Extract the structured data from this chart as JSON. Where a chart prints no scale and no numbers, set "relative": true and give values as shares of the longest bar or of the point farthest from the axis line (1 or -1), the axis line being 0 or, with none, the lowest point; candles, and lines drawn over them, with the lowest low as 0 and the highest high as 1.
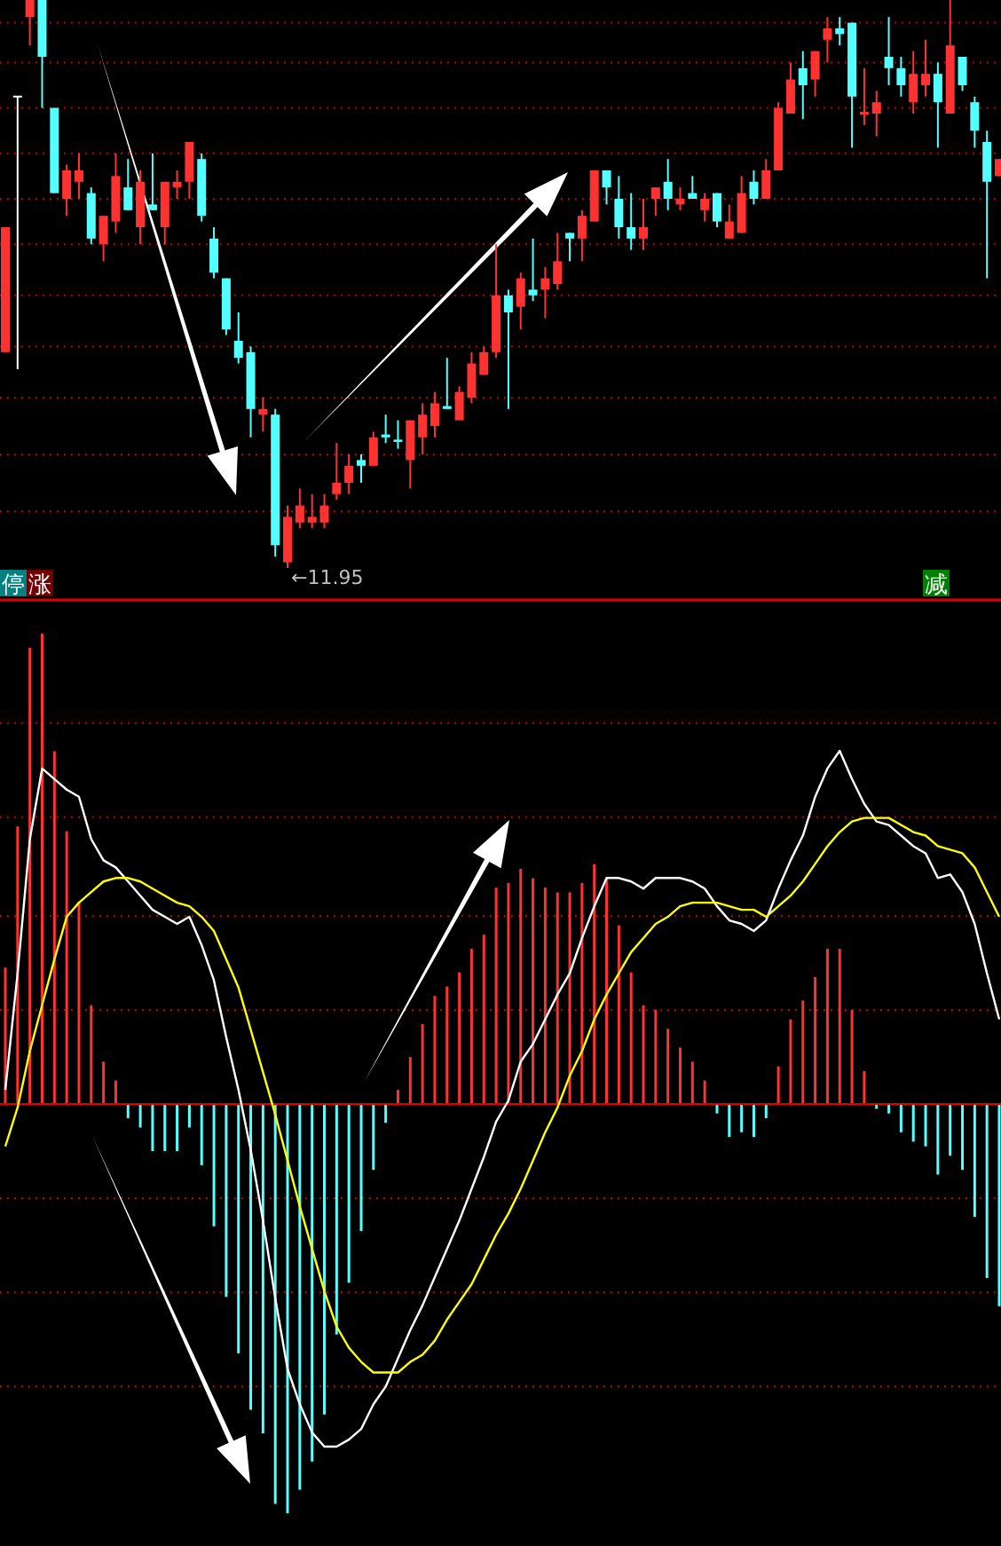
{
  "chart_data": [
    {
      "type": "candlestick",
      "relative": true,
      "ref_lines": [
        {
          "axis": "y",
          "value": 0.96,
          "color": "#c00000",
          "line_style": "dotted"
        },
        {
          "axis": "y",
          "value": 0.89,
          "color": "#c00000",
          "line_style": "dotted"
        },
        {
          "axis": "y",
          "value": 0.81,
          "color": "#c00000",
          "line_style": "dotted"
        },
        {
          "axis": "y",
          "value": 0.73,
          "color": "#c00000",
          "line_style": "dotted"
        },
        {
          "axis": "y",
          "value": 0.65,
          "color": "#c00000",
          "line_style": "dotted"
        },
        {
          "axis": "y",
          "value": 0.57,
          "color": "#c00000",
          "line_style": "dotted"
        },
        {
          "axis": "y",
          "value": 0.48,
          "color": "#c00000",
          "line_style": "dotted"
        },
        {
          "axis": "y",
          "value": 0.39,
          "color": "#c00000",
          "line_style": "dotted"
        },
        {
          "axis": "y",
          "value": 0.3,
          "color": "#c00000",
          "line_style": "dotted"
        },
        {
          "axis": "y",
          "value": 0.2,
          "color": "#c00000",
          "line_style": "dotted"
        },
        {
          "axis": "y",
          "value": 0.1,
          "color": "#c00000",
          "line_style": "dotted"
        }
      ],
      "categories": [
        null,
        null,
        null,
        null,
        null,
        null,
        null,
        null,
        null,
        null,
        null,
        null,
        null,
        null,
        null,
        null,
        null,
        null,
        null,
        null,
        null,
        null,
        null,
        null,
        null,
        null,
        null,
        null,
        null,
        null,
        null,
        null,
        null,
        null,
        null,
        null,
        null,
        null,
        null,
        null,
        null,
        null,
        null,
        null,
        null,
        null,
        null,
        null,
        null,
        null,
        null,
        null,
        null,
        null,
        null,
        null,
        null,
        null,
        null,
        null,
        null,
        null,
        null,
        null,
        null,
        null,
        null,
        null,
        null,
        null,
        null,
        null,
        null,
        null,
        null,
        null,
        null,
        null,
        null,
        null,
        null,
        null
      ],
      "ohlc": [
        [
          0.38,
          0.6,
          0.38,
          0.6
        ],
        [
          0.83,
          0.83,
          0.35,
          0.83
        ],
        [
          0.97,
          1.0,
          0.92,
          1.0
        ],
        [
          1.0,
          1.0,
          0.81,
          0.9
        ],
        [
          0.81,
          0.81,
          0.66,
          0.66
        ],
        [
          0.65,
          0.71,
          0.62,
          0.7
        ],
        [
          0.68,
          0.73,
          0.65,
          0.7
        ],
        [
          0.66,
          0.67,
          0.57,
          0.58
        ],
        [
          0.57,
          0.62,
          0.54,
          0.62
        ],
        [
          0.61,
          0.73,
          0.59,
          0.69
        ],
        [
          0.67,
          0.72,
          0.63,
          0.63
        ],
        [
          0.6,
          0.7,
          0.57,
          0.68
        ],
        [
          0.64,
          0.73,
          0.63,
          0.63
        ],
        [
          0.6,
          0.68,
          0.57,
          0.68
        ],
        [
          0.67,
          0.7,
          0.65,
          0.68
        ],
        [
          0.68,
          0.75,
          0.65,
          0.75
        ],
        [
          0.72,
          0.73,
          0.61,
          0.62
        ],
        [
          0.58,
          0.6,
          0.51,
          0.52
        ],
        [
          0.51,
          0.51,
          0.41,
          0.42
        ],
        [
          0.4,
          0.45,
          0.36,
          0.37
        ],
        [
          0.38,
          0.39,
          0.23,
          0.28
        ],
        [
          0.27,
          0.3,
          0.24,
          0.28
        ],
        [
          0.27,
          0.28,
          0.02,
          0.04
        ],
        [
          0.01,
          0.11,
          0.0,
          0.09
        ],
        [
          0.08,
          0.14,
          0.07,
          0.11
        ],
        [
          0.08,
          0.13,
          0.07,
          0.09
        ],
        [
          0.08,
          0.13,
          0.07,
          0.11
        ],
        [
          0.13,
          0.22,
          0.12,
          0.15
        ],
        [
          0.15,
          0.2,
          0.13,
          0.18
        ],
        [
          0.19,
          0.2,
          0.15,
          0.18
        ],
        [
          0.18,
          0.24,
          0.18,
          0.23
        ],
        [
          0.235,
          0.27,
          0.22,
          0.23
        ],
        [
          0.226,
          0.26,
          0.21,
          0.222
        ],
        [
          0.19,
          0.26,
          0.14,
          0.26
        ],
        [
          0.23,
          0.29,
          0.2,
          0.27
        ],
        [
          0.25,
          0.31,
          0.23,
          0.29
        ],
        [
          0.285,
          0.37,
          0.28,
          0.28
        ],
        [
          0.26,
          0.32,
          0.26,
          0.31
        ],
        [
          0.3,
          0.38,
          0.29,
          0.36
        ],
        [
          0.34,
          0.39,
          0.34,
          0.38
        ],
        [
          0.38,
          0.57,
          0.37,
          0.48
        ],
        [
          0.48,
          0.49,
          0.28,
          0.45
        ],
        [
          0.46,
          0.52,
          0.42,
          0.51
        ],
        [
          0.49,
          0.58,
          0.47,
          0.48
        ],
        [
          0.49,
          0.53,
          0.44,
          0.51
        ],
        [
          0.5,
          0.59,
          0.49,
          0.54
        ],
        [
          0.59,
          0.59,
          0.54,
          0.58
        ],
        [
          0.58,
          0.63,
          0.54,
          0.62
        ],
        [
          0.61,
          0.7,
          0.61,
          0.7
        ],
        [
          0.7,
          0.7,
          0.64,
          0.67
        ],
        [
          0.65,
          0.69,
          0.58,
          0.6
        ],
        [
          0.6,
          0.66,
          0.56,
          0.58
        ],
        [
          0.58,
          0.65,
          0.56,
          0.6
        ],
        [
          0.65,
          0.67,
          0.62,
          0.67
        ],
        [
          0.68,
          0.72,
          0.63,
          0.65
        ],
        [
          0.64,
          0.67,
          0.63,
          0.65
        ],
        [
          0.66,
          0.69,
          0.65,
          0.65
        ],
        [
          0.63,
          0.66,
          0.61,
          0.65
        ],
        [
          0.66,
          0.66,
          0.6,
          0.61
        ],
        [
          0.58,
          0.64,
          0.58,
          0.61
        ],
        [
          0.59,
          0.69,
          0.59,
          0.66
        ],
        [
          0.68,
          0.7,
          0.64,
          0.65
        ],
        [
          0.65,
          0.72,
          0.65,
          0.7
        ],
        [
          0.7,
          0.82,
          0.7,
          0.81
        ],
        [
          0.8,
          0.89,
          0.8,
          0.86
        ],
        [
          0.88,
          0.91,
          0.79,
          0.85
        ],
        [
          0.86,
          0.91,
          0.83,
          0.91
        ],
        [
          0.93,
          0.97,
          0.89,
          0.95
        ],
        [
          0.95,
          0.97,
          0.92,
          0.94
        ],
        [
          0.96,
          0.96,
          0.74,
          0.83
        ],
        [
          0.798,
          0.88,
          0.78,
          0.803
        ],
        [
          0.8,
          0.84,
          0.76,
          0.82
        ],
        [
          0.9,
          0.97,
          0.85,
          0.88
        ],
        [
          0.88,
          0.9,
          0.83,
          0.85
        ],
        [
          0.82,
          0.91,
          0.8,
          0.87
        ],
        [
          0.85,
          0.93,
          0.83,
          0.87
        ],
        [
          0.87,
          0.89,
          0.74,
          0.82
        ],
        [
          0.8,
          1.0,
          0.8,
          0.92
        ],
        [
          0.9,
          0.9,
          0.84,
          0.85
        ],
        [
          0.82,
          0.83,
          0.74,
          0.77
        ],
        [
          0.75,
          0.77,
          0.51,
          0.68
        ],
        [
          0.69,
          0.72,
          0.69,
          0.72
        ]
      ],
      "colors": [
        "#ff3232",
        "#ffffff",
        "#ff3232",
        "#54ffff",
        "#54ffff",
        "#ff3232",
        "#ff3232",
        "#54ffff",
        "#ff3232",
        "#ff3232",
        "#54ffff",
        "#ff3232",
        "#54ffff",
        "#ff3232",
        "#ff3232",
        "#ff3232",
        "#54ffff",
        "#54ffff",
        "#54ffff",
        "#54ffff",
        "#54ffff",
        "#ff3232",
        "#54ffff",
        "#ff3232",
        "#ff3232",
        "#ff3232",
        "#ff3232",
        "#ff3232",
        "#ff3232",
        "#54ffff",
        "#ff3232",
        "#54ffff",
        "#54ffff",
        "#ff3232",
        "#ff3232",
        "#ff3232",
        "#54ffff",
        "#ff3232",
        "#ff3232",
        "#ff3232",
        "#ff3232",
        "#54ffff",
        "#ff3232",
        "#54ffff",
        "#ff3232",
        "#ff3232",
        "#54ffff",
        "#ff3232",
        "#ff3232",
        "#54ffff",
        "#54ffff",
        "#54ffff",
        "#ff3232",
        "#ff3232",
        "#54ffff",
        "#ff3232",
        "#54ffff",
        "#ff3232",
        "#54ffff",
        "#ff3232",
        "#ff3232",
        "#54ffff",
        "#ff3232",
        "#ff3232",
        "#ff3232",
        "#54ffff",
        "#ff3232",
        "#ff3232",
        "#54ffff",
        "#54ffff",
        "#ff3232",
        "#ff3232",
        "#54ffff",
        "#54ffff",
        "#ff3232",
        "#ff3232",
        "#54ffff",
        "#ff3232",
        "#54ffff",
        "#54ffff",
        "#54ffff",
        "#ff3232"
      ],
      "annotations": [
        "停",
        "涨",
        "减",
        "←11.95"
      ]
    },
    {
      "type": "bar",
      "relative": true,
      "ref_lines": [
        {
          "axis": "y",
          "value": 0.81,
          "color": "#c00000",
          "line_style": "dotted"
        },
        {
          "axis": "y",
          "value": 0.61,
          "color": "#c00000",
          "line_style": "dotted"
        },
        {
          "axis": "y",
          "value": 0.4,
          "color": "#c00000",
          "line_style": "dotted"
        },
        {
          "axis": "y",
          "value": 0.2,
          "color": "#c00000",
          "line_style": "dotted"
        },
        {
          "axis": "y",
          "value": -0.2,
          "color": "#c00000",
          "line_style": "dotted"
        },
        {
          "axis": "y",
          "value": -0.4,
          "color": "#c00000",
          "line_style": "dotted"
        },
        {
          "axis": "y",
          "value": -0.6,
          "color": "#c00000",
          "line_style": "dotted"
        }
      ],
      "categories": [
        null,
        null,
        null,
        null,
        null,
        null,
        null,
        null,
        null,
        null,
        null,
        null,
        null,
        null,
        null,
        null,
        null,
        null,
        null,
        null,
        null,
        null,
        null,
        null,
        null,
        null,
        null,
        null,
        null,
        null,
        null,
        null,
        null,
        null,
        null,
        null,
        null,
        null,
        null,
        null,
        null,
        null,
        null,
        null,
        null,
        null,
        null,
        null,
        null,
        null,
        null,
        null,
        null,
        null,
        null,
        null,
        null,
        null,
        null,
        null,
        null,
        null,
        null,
        null,
        null,
        null,
        null,
        null,
        null,
        null,
        null,
        null,
        null,
        null,
        null,
        null,
        null,
        null,
        null,
        null,
        null,
        null
      ],
      "values": [
        0.29,
        0.59,
        0.97,
        1.0,
        0.75,
        0.58,
        0.43,
        0.21,
        0.09,
        0.05,
        -0.03,
        -0.05,
        -0.1,
        -0.1,
        -0.1,
        -0.05,
        -0.13,
        -0.26,
        -0.41,
        -0.53,
        -0.65,
        -0.7,
        -0.85,
        -0.87,
        -0.82,
        -0.76,
        -0.66,
        -0.49,
        -0.38,
        -0.27,
        -0.14,
        -0.04,
        0.03,
        0.1,
        0.17,
        0.23,
        0.25,
        0.28,
        0.33,
        0.36,
        0.46,
        0.47,
        0.5,
        0.48,
        0.46,
        0.45,
        0.45,
        0.47,
        0.51,
        0.48,
        0.38,
        0.28,
        0.21,
        0.2,
        0.16,
        0.12,
        0.09,
        0.05,
        -0.02,
        -0.07,
        -0.06,
        -0.07,
        -0.03,
        0.08,
        0.18,
        0.22,
        0.27,
        0.33,
        0.33,
        0.2,
        0.07,
        -0.01,
        -0.02,
        -0.06,
        -0.08,
        -0.09,
        -0.15,
        -0.11,
        -0.14,
        -0.24,
        -0.37,
        -0.43
      ],
      "colors": [
        "#ff3232",
        "#ff3232",
        "#ff3232",
        "#ff3232",
        "#ff3232",
        "#ff3232",
        "#ff3232",
        "#ff3232",
        "#ff3232",
        "#ff3232",
        "#54ffff",
        "#54ffff",
        "#54ffff",
        "#54ffff",
        "#54ffff",
        "#54ffff",
        "#54ffff",
        "#54ffff",
        "#54ffff",
        "#54ffff",
        "#54ffff",
        "#54ffff",
        "#54ffff",
        "#54ffff",
        "#54ffff",
        "#54ffff",
        "#54ffff",
        "#54ffff",
        "#54ffff",
        "#54ffff",
        "#54ffff",
        "#54ffff",
        "#ff3232",
        "#ff3232",
        "#ff3232",
        "#ff3232",
        "#ff3232",
        "#ff3232",
        "#ff3232",
        "#ff3232",
        "#ff3232",
        "#ff3232",
        "#ff3232",
        "#ff3232",
        "#ff3232",
        "#ff3232",
        "#ff3232",
        "#ff3232",
        "#ff3232",
        "#ff3232",
        "#ff3232",
        "#ff3232",
        "#ff3232",
        "#ff3232",
        "#ff3232",
        "#ff3232",
        "#ff3232",
        "#ff3232",
        "#54ffff",
        "#54ffff",
        "#54ffff",
        "#54ffff",
        "#54ffff",
        "#ff3232",
        "#ff3232",
        "#ff3232",
        "#ff3232",
        "#ff3232",
        "#ff3232",
        "#ff3232",
        "#ff3232",
        "#54ffff",
        "#54ffff",
        "#54ffff",
        "#54ffff",
        "#54ffff",
        "#54ffff",
        "#54ffff",
        "#54ffff",
        "#54ffff",
        "#54ffff",
        "#54ffff"
      ]
    },
    {
      "type": "line",
      "relative": true,
      "ref_lines": [
        {
          "axis": "y",
          "value": 0,
          "color": "#e00000",
          "line_style": "solid"
        }
      ],
      "categories": [
        null,
        null,
        null,
        null,
        null,
        null,
        null,
        null,
        null,
        null,
        null,
        null,
        null,
        null,
        null,
        null,
        null,
        null,
        null,
        null,
        null,
        null,
        null,
        null,
        null,
        null,
        null,
        null,
        null,
        null,
        null,
        null,
        null,
        null,
        null,
        null,
        null,
        null,
        null,
        null,
        null,
        null,
        null,
        null,
        null,
        null,
        null,
        null,
        null,
        null,
        null,
        null,
        null,
        null,
        null,
        null,
        null,
        null,
        null,
        null,
        null,
        null,
        null,
        null,
        null,
        null,
        null,
        null,
        null,
        null,
        null,
        null,
        null,
        null,
        null,
        null,
        null,
        null,
        null,
        null,
        null,
        null
      ],
      "series": [
        {
          "color": "#ffffff",
          "values": [
            0.04,
            0.37,
            0.75,
            0.95,
            0.92,
            0.89,
            0.87,
            0.75,
            0.69,
            0.67,
            0.63,
            0.59,
            0.55,
            0.53,
            0.51,
            0.53,
            0.45,
            0.35,
            0.19,
            0.04,
            -0.13,
            -0.33,
            -0.55,
            -0.75,
            -0.85,
            -0.93,
            -0.97,
            -0.97,
            -0.95,
            -0.92,
            -0.85,
            -0.8,
            -0.72,
            -0.64,
            -0.57,
            -0.49,
            -0.41,
            -0.33,
            -0.24,
            -0.15,
            -0.05,
            0.01,
            0.12,
            0.17,
            0.24,
            0.31,
            0.37,
            0.47,
            0.56,
            0.64,
            0.64,
            0.63,
            0.61,
            0.64,
            0.64,
            0.64,
            0.63,
            0.61,
            0.56,
            0.52,
            0.51,
            0.49,
            0.52,
            0.61,
            0.69,
            0.76,
            0.87,
            0.95,
            1.0,
            0.92,
            0.85,
            0.8,
            0.79,
            0.76,
            0.73,
            0.71,
            0.64,
            0.65,
            0.6,
            0.51,
            0.37,
            0.24
          ]
        },
        {
          "color": "#ffff00",
          "values": [
            -0.12,
            -0.01,
            0.15,
            0.28,
            0.41,
            0.53,
            0.57,
            0.6,
            0.63,
            0.64,
            0.64,
            0.63,
            0.61,
            0.59,
            0.57,
            0.56,
            0.53,
            0.49,
            0.41,
            0.33,
            0.21,
            0.09,
            -0.03,
            -0.16,
            -0.29,
            -0.41,
            -0.53,
            -0.63,
            -0.69,
            -0.73,
            -0.76,
            -0.76,
            -0.76,
            -0.73,
            -0.71,
            -0.67,
            -0.61,
            -0.56,
            -0.51,
            -0.44,
            -0.37,
            -0.31,
            -0.24,
            -0.16,
            -0.08,
            -0.01,
            0.08,
            0.15,
            0.24,
            0.31,
            0.37,
            0.43,
            0.47,
            0.51,
            0.53,
            0.56,
            0.57,
            0.57,
            0.57,
            0.56,
            0.55,
            0.55,
            0.53,
            0.56,
            0.59,
            0.63,
            0.68,
            0.73,
            0.77,
            0.8,
            0.81,
            0.81,
            0.81,
            0.79,
            0.77,
            0.76,
            0.73,
            0.72,
            0.71,
            0.67,
            0.6,
            0.53
          ]
        }
      ]
    }
  ]
}
